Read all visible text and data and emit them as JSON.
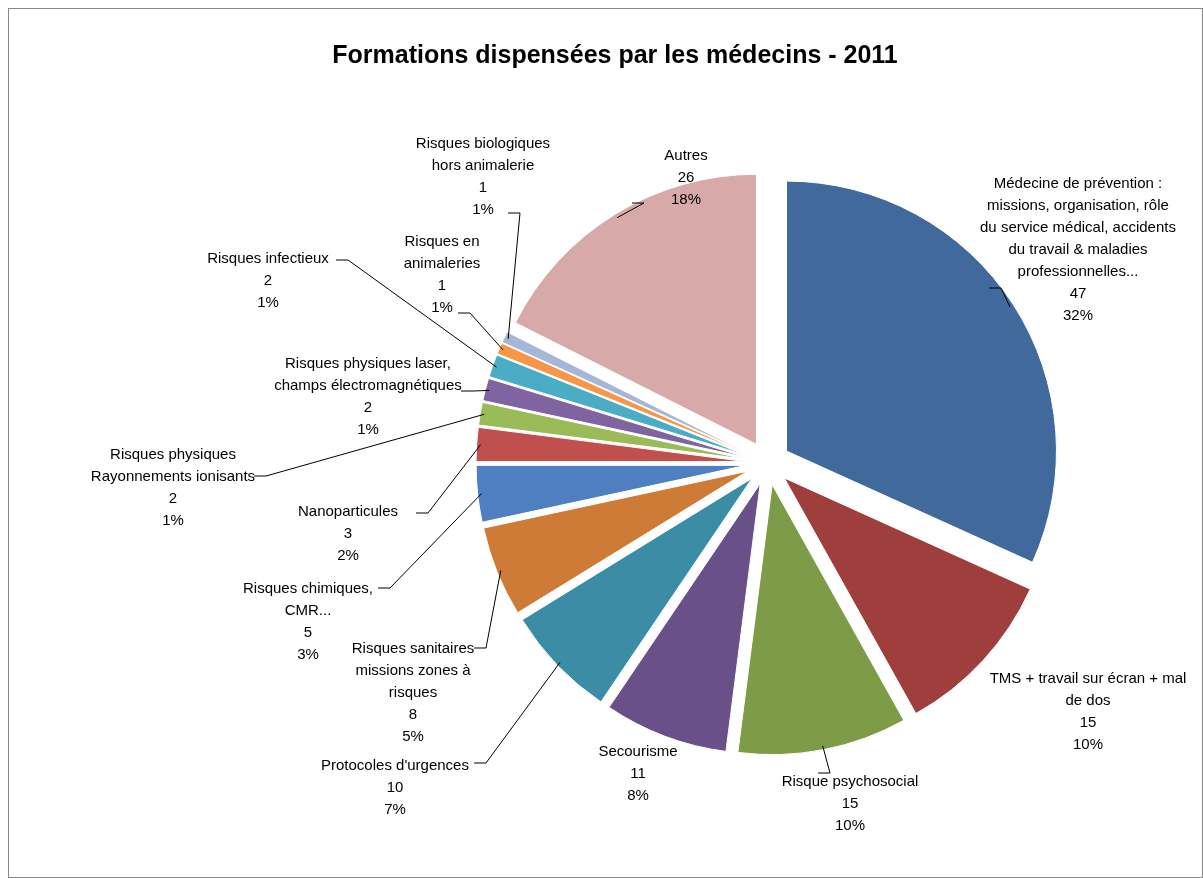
{
  "chart_data": {
    "type": "pie",
    "title": "Formations dispensées par les médecins - 2011",
    "categories": [
      "Médecine de prévention : missions, organisation, rôle du service médical, accidents du travail & maladies professionnelles...",
      "TMS + travail sur écran + mal de dos",
      "Risque psychosocial",
      "Secourisme",
      "Protocoles d'urgences",
      "Risques sanitaires missions zones à risques",
      "Risques chimiques, CMR...",
      "Nanoparticules",
      "Risques physiques Rayonnements ionisants",
      "Risques physiques laser, champs électromagnétiques",
      "Risques infectieux",
      "Risques en animaleries",
      "Risques biologiques hors animalerie",
      "Autres"
    ],
    "values": [
      47,
      15,
      15,
      11,
      10,
      8,
      5,
      3,
      2,
      2,
      2,
      1,
      1,
      26
    ],
    "value_labels": [
      "47\n32%",
      "15\n10%",
      "15\n10%",
      "11\n8%",
      "10\n7%",
      "8\n5%",
      "5\n3%",
      "3\n2%",
      "2\n1%",
      "2\n1%",
      "2\n1%",
      "1\n1%",
      "1\n1%",
      "26\n18%"
    ],
    "colors": [
      "#41699b",
      "#9e3f3e",
      "#7e9b48",
      "#6a5088",
      "#3b8da5",
      "#cd7b36",
      "#4f7fc0",
      "#c0504d",
      "#9bbb59",
      "#8064a2",
      "#4bacc6",
      "#f79646",
      "#a5b6d6",
      "#d8a9a9"
    ]
  }
}
